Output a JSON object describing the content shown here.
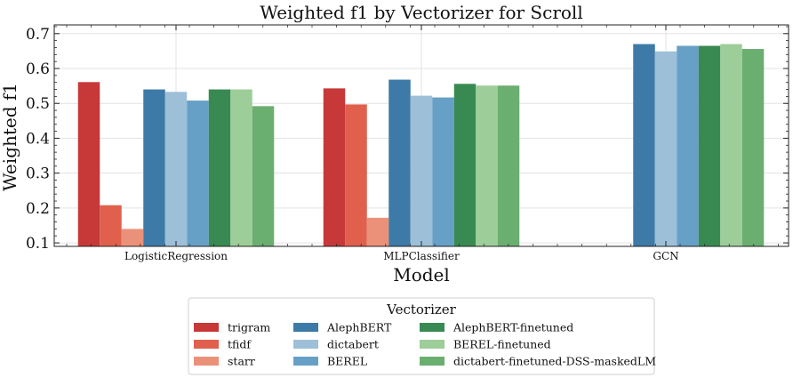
{
  "chart_data": {
    "type": "bar",
    "title": "Weighted f1 by Vectorizer for Scroll",
    "xlabel": "Model",
    "ylabel": "Weighted f1",
    "ylim": [
      0.09,
      0.725
    ],
    "yticks": [
      "0.1",
      "0.2",
      "0.3",
      "0.4",
      "0.5",
      "0.6",
      "0.7"
    ],
    "grid": true,
    "legend_placement": "bottom-center",
    "legend_title": "Vectorizer",
    "categories": [
      "LogisticRegression",
      "MLPClassifier",
      "GCN"
    ],
    "series": [
      {
        "name": "trigram",
        "color": "#c73838",
        "values": [
          0.561,
          0.543,
          null
        ]
      },
      {
        "name": "tfidf",
        "color": "#e0604d",
        "values": [
          0.208,
          0.497,
          null
        ]
      },
      {
        "name": "starr",
        "color": "#eb9179",
        "values": [
          0.14,
          0.172,
          null
        ]
      },
      {
        "name": "AlephBERT",
        "color": "#3d7aa8",
        "values": [
          0.54,
          0.568,
          0.67
        ]
      },
      {
        "name": "dictabert",
        "color": "#9dc0d8",
        "values": [
          0.533,
          0.522,
          0.649
        ]
      },
      {
        "name": "BEREL",
        "color": "#67a0c6",
        "values": [
          0.508,
          0.517,
          0.665
        ]
      },
      {
        "name": "AlephBERT-finetuned",
        "color": "#388a52",
        "values": [
          0.54,
          0.556,
          0.665
        ]
      },
      {
        "name": "BEREL-finetuned",
        "color": "#9dcd98",
        "values": [
          0.54,
          0.551,
          0.67
        ]
      },
      {
        "name": "dictabert-finetuned-DSS-maskedLM",
        "color": "#6aae70",
        "values": [
          0.492,
          0.551,
          0.656
        ]
      }
    ]
  }
}
